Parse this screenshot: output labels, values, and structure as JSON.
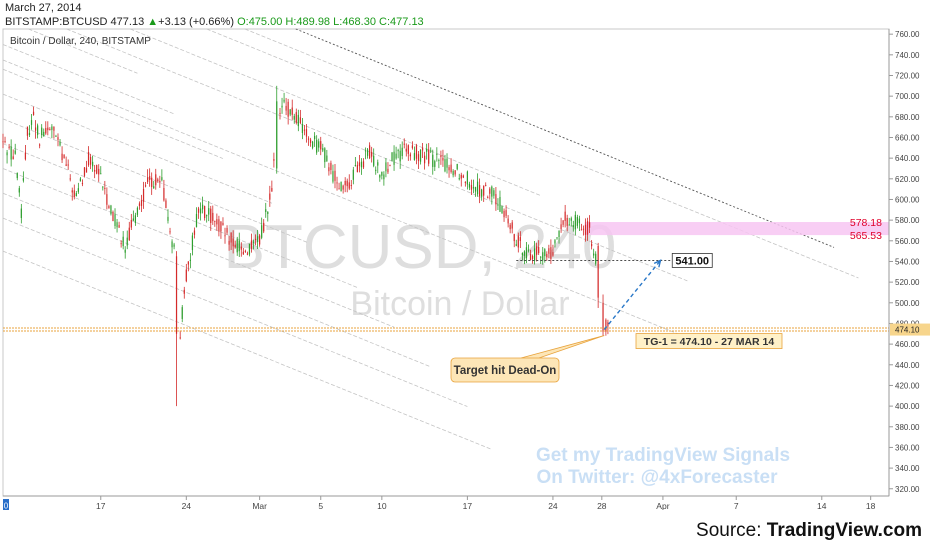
{
  "header": {
    "date": "March 27, 2014",
    "symbol": "BITSTAMP:BTCUSD",
    "last": "477.13",
    "change": "+3.13 (+0.66%)",
    "open_label": "O:",
    "open": "475.00",
    "high_label": "H:",
    "high": "489.98",
    "low_label": "L:",
    "low": "468.30",
    "close_label": "C:",
    "close": "477.13",
    "up_arrow": "▲"
  },
  "chart_data": {
    "type": "candlestick",
    "title": "Bitcoin / Dollar, 240, BITSTAMP",
    "watermark_symbol": "BTCUSD, 240",
    "watermark_name": "Bitcoin / Dollar",
    "ylim": [
      313,
      765
    ],
    "y_ticks": [
      320,
      340,
      360,
      380,
      400,
      420,
      440,
      460,
      480,
      500,
      520,
      540,
      560,
      580,
      600,
      620,
      640,
      660,
      680,
      700,
      720,
      740,
      760
    ],
    "x_ticks": [
      {
        "label": "17",
        "day": 8
      },
      {
        "label": "24",
        "day": 15
      },
      {
        "label": "Mar",
        "day": 21
      },
      {
        "label": "5",
        "day": 26
      },
      {
        "label": "10",
        "day": 31
      },
      {
        "label": "17",
        "day": 38
      },
      {
        "label": "24",
        "day": 45
      },
      {
        "label": "28",
        "day": 49
      },
      {
        "label": "Apr",
        "day": 54
      },
      {
        "label": "7",
        "day": 60
      },
      {
        "label": "14",
        "day": 67
      },
      {
        "label": "18",
        "day": 71
      }
    ],
    "x_range_days": [
      0,
      72.5
    ],
    "x_start_label": "0",
    "anchors": [
      [
        0,
        655
      ],
      [
        1,
        640
      ],
      [
        1.5,
        590
      ],
      [
        2,
        665
      ],
      [
        2.5,
        680
      ],
      [
        3,
        660
      ],
      [
        4,
        670
      ],
      [
        5,
        640
      ],
      [
        6,
        600
      ],
      [
        7,
        640
      ],
      [
        8,
        620
      ],
      [
        9,
        585
      ],
      [
        10,
        555
      ],
      [
        11,
        590
      ],
      [
        12,
        620
      ],
      [
        13,
        615
      ],
      [
        14,
        550
      ],
      [
        14.5,
        470
      ],
      [
        15,
        525
      ],
      [
        16,
        590
      ],
      [
        17,
        585
      ],
      [
        18,
        570
      ],
      [
        19,
        555
      ],
      [
        20,
        550
      ],
      [
        21,
        560
      ],
      [
        22,
        610
      ],
      [
        22.5,
        680
      ],
      [
        23,
        690
      ],
      [
        24,
        680
      ],
      [
        25,
        660
      ],
      [
        26,
        650
      ],
      [
        27,
        625
      ],
      [
        28,
        610
      ],
      [
        29,
        630
      ],
      [
        30,
        645
      ],
      [
        31,
        625
      ],
      [
        32,
        640
      ],
      [
        33,
        648
      ],
      [
        34,
        645
      ],
      [
        35,
        640
      ],
      [
        36,
        635
      ],
      [
        37,
        630
      ],
      [
        38,
        620
      ],
      [
        39,
        610
      ],
      [
        40,
        605
      ],
      [
        41,
        590
      ],
      [
        42,
        560
      ],
      [
        43,
        548
      ],
      [
        44,
        546
      ],
      [
        45,
        550
      ],
      [
        46,
        582
      ],
      [
        47,
        578
      ],
      [
        48,
        570
      ],
      [
        48.5,
        545
      ],
      [
        49,
        482
      ],
      [
        49.3,
        476
      ],
      [
        49.5,
        478
      ]
    ],
    "special_candles": [
      {
        "day": 14.2,
        "open": 545,
        "close": 470,
        "high": 550,
        "low": 400
      },
      {
        "day": 22.4,
        "open": 630,
        "close": 695,
        "high": 710,
        "low": 625
      },
      {
        "day": 48.7,
        "open": 555,
        "close": 505,
        "high": 558,
        "low": 495
      },
      {
        "day": 49.1,
        "open": 500,
        "close": 472,
        "high": 508,
        "low": 468
      }
    ],
    "levels": [
      {
        "value": 578.18,
        "label": "578.18",
        "color": "#e0002a"
      },
      {
        "value": 565.53,
        "label": "565.53",
        "color": "#e0002a"
      }
    ],
    "resistance_zone": [
      565.53,
      578.18
    ],
    "level_541": {
      "value": 541,
      "label": "541.00",
      "from_day": 42,
      "to_day": 54.6
    },
    "target": {
      "value": 474.1,
      "label": "TG-1 = 474.10 - 27 MAR 14",
      "price_tag": "474.10",
      "day": 49.2
    },
    "projection": {
      "from": [
        49.2,
        474.1
      ],
      "to": [
        53.8,
        541
      ]
    },
    "callout": "Target hit Dead-On",
    "signals_text_1": "Get my TradingView Signals",
    "signals_text_2": "On Twitter: @4xForecaster",
    "channel_slope_per_day": -4.8,
    "channel_lines": [
      {
        "value_at_day0": 775,
        "to_day": 11,
        "dashed": false
      },
      {
        "value_at_day0": 750,
        "to_day": 14,
        "dashed": false
      },
      {
        "value_at_day0": 726,
        "to_day": 18,
        "dashed": false
      },
      {
        "value_at_day0": 702,
        "to_day": 22,
        "dashed": false
      },
      {
        "value_at_day0": 678,
        "to_day": 25,
        "dashed": false
      },
      {
        "value_at_day0": 654,
        "to_day": 29,
        "dashed": false
      },
      {
        "value_at_day0": 630,
        "to_day": 32,
        "dashed": false
      },
      {
        "value_at_day0": 606,
        "to_day": 35,
        "dashed": false
      },
      {
        "value_at_day0": 582,
        "to_day": 38,
        "dashed": false
      },
      {
        "value_at_day0": 550,
        "to_day": 40,
        "dashed": false
      },
      {
        "value_at_day0": 845,
        "to_day": 30,
        "dashed": false
      },
      {
        "value_at_day0": 815,
        "to_day": 44,
        "dashed": false
      },
      {
        "value_at_day0": 790,
        "to_day": 56,
        "dashed": false
      },
      {
        "value_at_day0": 735,
        "to_day": 58,
        "dashed": false
      },
      {
        "value_at_day0": 880,
        "to_day": 68,
        "dashed": true
      },
      {
        "value_at_day0": 860,
        "to_day": 70,
        "dashed": false
      }
    ]
  },
  "source": {
    "prefix": "Source: ",
    "brand": "TradingView.com"
  }
}
